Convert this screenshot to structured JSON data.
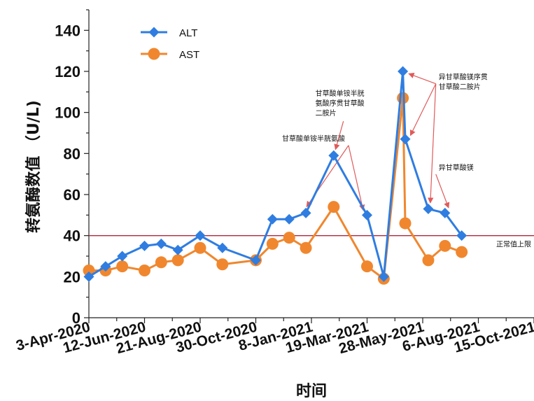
{
  "chart_data": {
    "type": "line",
    "xlabel": "时间",
    "ylabel": "转氨酶数值 （U/L)",
    "ylim": [
      0,
      150
    ],
    "yticks": [
      0,
      20,
      40,
      60,
      80,
      100,
      120,
      140
    ],
    "xlim": [
      "2020-04-03",
      "2021-10-15"
    ],
    "xticks": [
      "2020-04-03",
      "2020-06-12",
      "2020-08-21",
      "2020-10-30",
      "2021-01-08",
      "2021-03-19",
      "2021-05-28",
      "2021-08-06",
      "2021-10-15"
    ],
    "xtick_labels": [
      "3-Apr-2020",
      "12-Jun-2020",
      "21-Aug-2020",
      "30-Oct-2020",
      "8-Jan-2021",
      "19-Mar-2021",
      "28-May-2021",
      "6-Aug-2021",
      "15-Oct-2021"
    ],
    "grid": false,
    "legend": "top-left",
    "reference_line": {
      "y": 40,
      "label": "正常值上限",
      "color": "#b0283c"
    },
    "series": [
      {
        "name": "ALT",
        "color": "#2f7de1",
        "marker": "diamond",
        "points": [
          [
            "2020-04-03",
            20
          ],
          [
            "2020-04-24",
            25
          ],
          [
            "2020-05-15",
            30
          ],
          [
            "2020-06-12",
            35
          ],
          [
            "2020-07-03",
            36
          ],
          [
            "2020-07-24",
            33
          ],
          [
            "2020-08-21",
            40
          ],
          [
            "2020-09-18",
            34
          ],
          [
            "2020-10-30",
            28
          ],
          [
            "2020-11-20",
            48
          ],
          [
            "2020-12-11",
            48
          ],
          [
            "2021-01-01",
            51
          ],
          [
            "2021-02-05",
            79
          ],
          [
            "2021-03-19",
            50
          ],
          [
            "2021-04-09",
            20
          ],
          [
            "2021-05-03",
            120
          ],
          [
            "2021-05-06",
            87
          ],
          [
            "2021-06-04",
            53
          ],
          [
            "2021-06-25",
            51
          ],
          [
            "2021-07-16",
            40
          ]
        ]
      },
      {
        "name": "AST",
        "color": "#f0872e",
        "marker": "circle",
        "points": [
          [
            "2020-04-03",
            23
          ],
          [
            "2020-04-24",
            23
          ],
          [
            "2020-05-15",
            25
          ],
          [
            "2020-06-12",
            23
          ],
          [
            "2020-07-03",
            27
          ],
          [
            "2020-07-24",
            28
          ],
          [
            "2020-08-21",
            34
          ],
          [
            "2020-09-18",
            26
          ],
          [
            "2020-10-30",
            28
          ],
          [
            "2020-11-20",
            36
          ],
          [
            "2020-12-11",
            39
          ],
          [
            "2021-01-01",
            34
          ],
          [
            "2021-02-05",
            54
          ],
          [
            "2021-03-19",
            25
          ],
          [
            "2021-04-09",
            19
          ],
          [
            "2021-05-03",
            107
          ],
          [
            "2021-05-06",
            46
          ],
          [
            "2021-06-04",
            28
          ],
          [
            "2021-06-25",
            35
          ],
          [
            "2021-07-16",
            32
          ]
        ]
      }
    ],
    "annotations": [
      {
        "lines": [
          "甘草酸单铵半胱氨酸"
        ],
        "text_anchor": [
          "2020-12-02",
          86
        ],
        "arrows_to": [
          [
            "2021-01-01",
            51
          ],
          [
            "2021-03-19",
            50
          ]
        ]
      },
      {
        "lines": [
          "甘草酸单铵半胱",
          "氨酸序贯甘草酸",
          "二胺片"
        ],
        "text_anchor": [
          "2021-01-13",
          108
        ],
        "arrows_to": [
          [
            "2021-02-05",
            79
          ]
        ]
      },
      {
        "lines": [
          "异甘草酸镁序贯",
          "甘草酸二胺片"
        ],
        "text_anchor": [
          "2021-06-17",
          116
        ],
        "arrows_to": [
          [
            "2021-05-03",
            120
          ],
          [
            "2021-05-06",
            87
          ],
          [
            "2021-06-04",
            53
          ]
        ]
      },
      {
        "lines": [
          "异甘草酸镁"
        ],
        "text_anchor": [
          "2021-06-17",
          72
        ],
        "arrows_to": [
          [
            "2021-06-25",
            51
          ]
        ]
      }
    ]
  }
}
